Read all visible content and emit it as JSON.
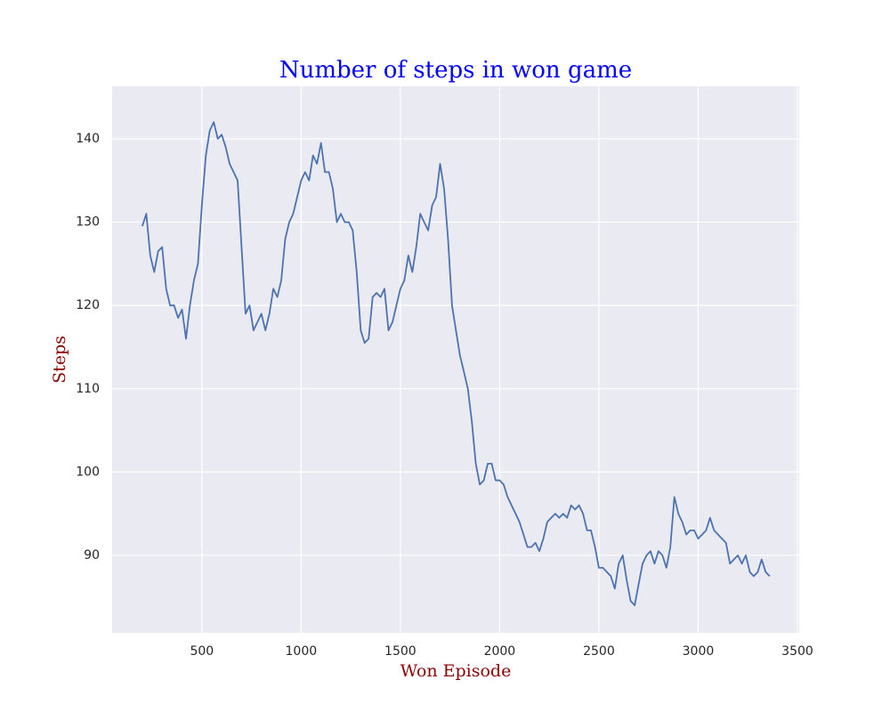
{
  "chart_data": {
    "type": "line",
    "title": "Number of steps in won game",
    "x_label": "Won Episode",
    "y_label": "Steps",
    "title_color": "#0000ff",
    "label_color": "#8b0000",
    "background": "#eaeaf2",
    "grid": true,
    "xlim": [
      48,
      3509
    ],
    "ylim": [
      80.7,
      146.3
    ],
    "xticks": [
      500,
      1000,
      1500,
      2000,
      2500,
      3000,
      3500
    ],
    "yticks": [
      90,
      100,
      110,
      120,
      130,
      140
    ],
    "x": [
      200,
      220,
      240,
      260,
      280,
      300,
      320,
      340,
      360,
      380,
      400,
      420,
      440,
      460,
      480,
      500,
      520,
      540,
      560,
      580,
      600,
      620,
      640,
      660,
      680,
      700,
      720,
      740,
      760,
      780,
      800,
      820,
      840,
      860,
      880,
      900,
      920,
      940,
      960,
      980,
      1000,
      1020,
      1040,
      1060,
      1080,
      1100,
      1120,
      1140,
      1160,
      1180,
      1200,
      1220,
      1240,
      1260,
      1280,
      1300,
      1320,
      1340,
      1360,
      1380,
      1400,
      1420,
      1440,
      1460,
      1480,
      1500,
      1520,
      1540,
      1560,
      1580,
      1600,
      1620,
      1640,
      1660,
      1680,
      1700,
      1720,
      1740,
      1760,
      1780,
      1800,
      1820,
      1840,
      1860,
      1880,
      1900,
      1920,
      1940,
      1960,
      1980,
      2000,
      2020,
      2040,
      2060,
      2080,
      2100,
      2120,
      2140,
      2160,
      2180,
      2200,
      2220,
      2240,
      2260,
      2280,
      2300,
      2320,
      2340,
      2360,
      2380,
      2400,
      2420,
      2440,
      2460,
      2480,
      2500,
      2520,
      2540,
      2560,
      2580,
      2600,
      2620,
      2640,
      2660,
      2680,
      2700,
      2720,
      2740,
      2760,
      2780,
      2800,
      2820,
      2840,
      2860,
      2880,
      2900,
      2920,
      2940,
      2960,
      2980,
      3000,
      3020,
      3040,
      3060,
      3080,
      3100,
      3120,
      3140,
      3160,
      3180,
      3200,
      3220,
      3240,
      3260,
      3280,
      3300,
      3320,
      3340,
      3360
    ],
    "series": [
      {
        "color": "#4c72b0",
        "values": [
          129.5,
          131,
          126,
          124,
          126.5,
          127,
          122,
          120,
          120,
          118.5,
          119.5,
          116,
          120,
          123,
          125,
          132,
          138,
          141,
          142,
          140,
          140.5,
          139,
          137,
          136,
          135,
          127,
          119,
          120,
          117,
          118,
          119,
          117,
          119,
          122,
          121,
          123,
          128,
          130,
          131,
          133,
          135,
          136,
          135,
          138,
          137,
          139.5,
          136,
          136,
          134,
          130,
          131,
          130,
          130,
          129,
          124,
          117,
          115.5,
          116,
          121,
          121.5,
          121,
          122,
          117,
          118,
          120,
          122,
          123,
          126,
          124,
          127,
          131,
          130,
          129,
          132,
          133,
          137,
          134,
          128,
          120,
          117,
          114,
          112,
          110,
          106,
          101,
          98.5,
          99,
          101,
          101,
          99,
          99,
          98.5,
          97,
          96,
          95,
          94,
          92.5,
          91,
          91,
          91.5,
          90.5,
          92,
          94,
          94.5,
          95,
          94.5,
          95,
          94.5,
          96,
          95.5,
          96,
          95,
          93,
          93,
          91,
          88.5,
          88.5,
          88,
          87.5,
          86,
          89,
          90,
          87,
          84.5,
          84,
          86.5,
          89,
          90,
          90.5,
          89,
          90.5,
          90,
          88.5,
          91,
          97,
          95,
          94,
          92.5,
          93,
          93,
          92,
          92.5,
          93,
          94.5,
          93,
          92.5,
          92,
          91.5,
          89,
          89.5,
          90,
          89,
          90,
          88,
          87.5,
          88,
          89.5,
          88,
          87.5
        ]
      }
    ]
  }
}
